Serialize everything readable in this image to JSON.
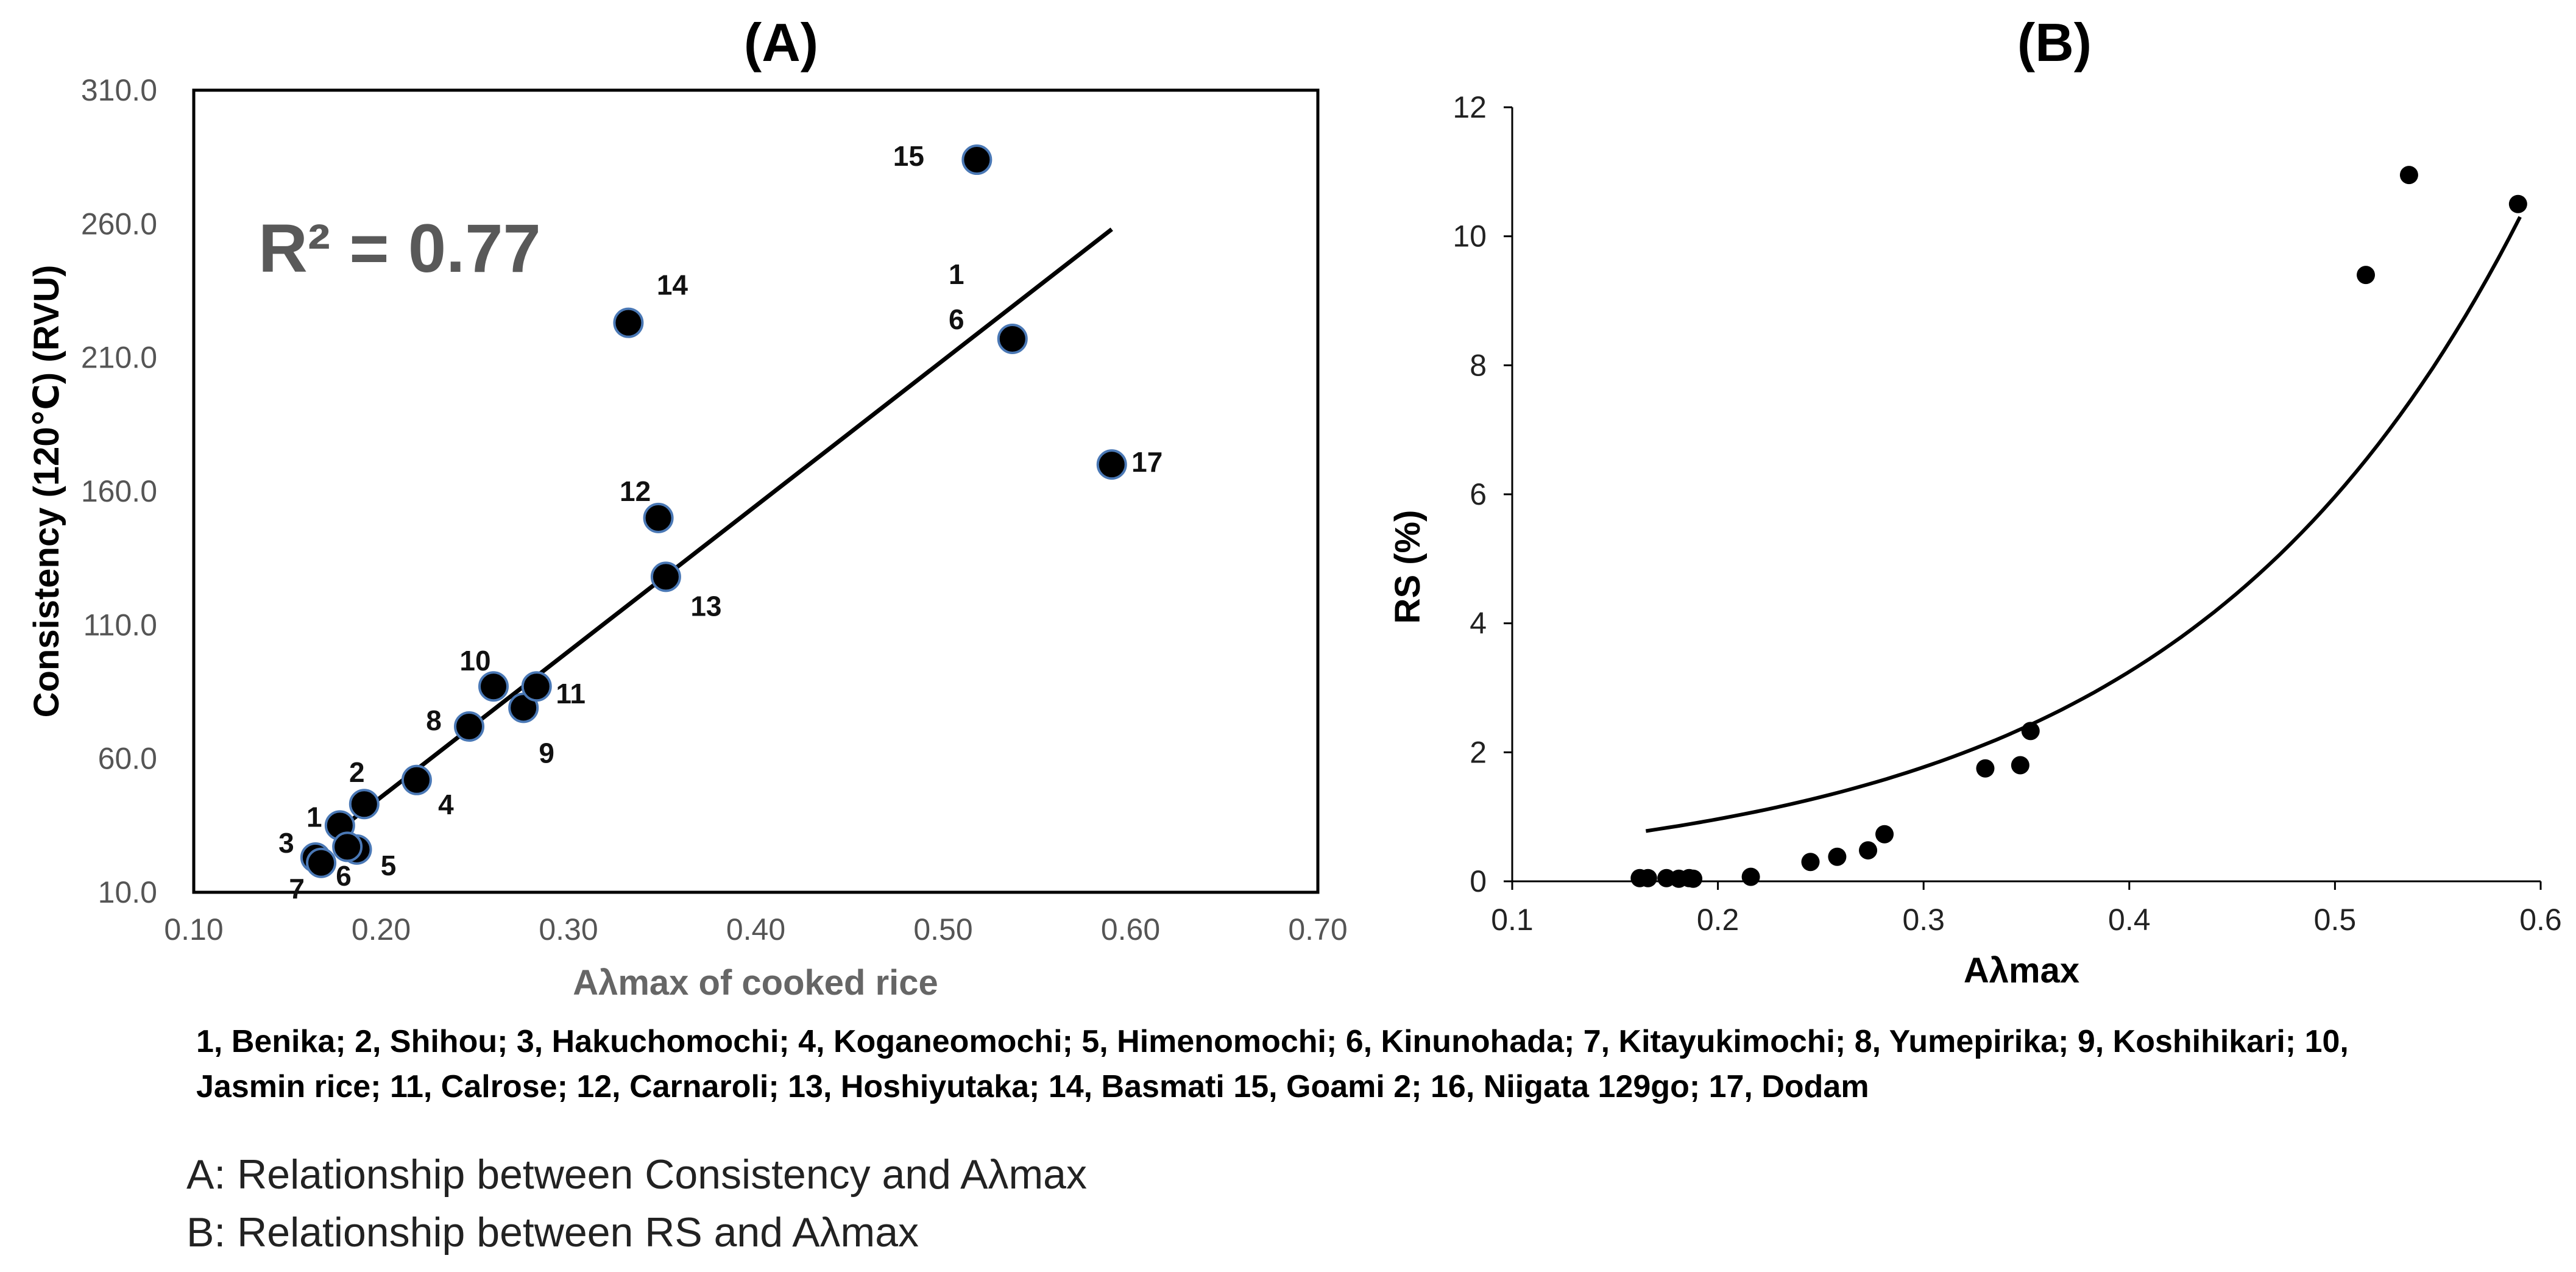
{
  "panel_a_title": "(A)",
  "panel_b_title": "(B)",
  "legend_text": "1, Benika; 2, Shihou; 3, Hakuchomochi; 4, Koganeomochi; 5, Himenomochi; 6, Kinunohada; 7, Kitayukimochi; 8, Yumepirika; 9, Koshihikari; 10, Jasmin rice; 11, Calrose; 12, Carnaroli; 13, Hoshiyutaka; 14, Basmati 15, Goami 2; 16, Niigata 129go; 17, Dodam",
  "caption_a": "A: Relationship between Consistency and Aλmax",
  "caption_b": "B: Relationship between RS and Aλmax",
  "colors": {
    "marker": "#000000",
    "marker_edge": "#4a78b5",
    "trend": "#000000",
    "r2_text": "#595959"
  },
  "chart_data": [
    {
      "type": "scatter",
      "title": "(A)",
      "xlabel": "Aλmax of cooked rice",
      "ylabel": "Consistency (120℃) (RVU)",
      "xlim": [
        0.1,
        0.7
      ],
      "ylim": [
        10.0,
        310.0
      ],
      "x_ticks": [
        "0.10",
        "0.20",
        "0.30",
        "0.40",
        "0.50",
        "0.60",
        "0.70"
      ],
      "y_ticks": [
        "10.0",
        "60.0",
        "110.0",
        "160.0",
        "210.0",
        "260.0",
        "310.0"
      ],
      "annotation": "R² = 0.77",
      "trendline": {
        "type": "linear",
        "x": [
          0.175,
          0.59
        ],
        "y": [
          32,
          258
        ]
      },
      "points": [
        {
          "x": 0.178,
          "y": 35,
          "label": "1"
        },
        {
          "x": 0.191,
          "y": 43,
          "label": "2"
        },
        {
          "x": 0.165,
          "y": 23,
          "label": "3"
        },
        {
          "x": 0.219,
          "y": 52,
          "label": "4"
        },
        {
          "x": 0.187,
          "y": 26,
          "label": "5"
        },
        {
          "x": 0.182,
          "y": 27,
          "label": ""
        },
        {
          "x": 0.168,
          "y": 21,
          "label": ""
        },
        {
          "x": 0.247,
          "y": 72,
          "label": "8"
        },
        {
          "x": 0.276,
          "y": 79,
          "label": "9"
        },
        {
          "x": 0.26,
          "y": 87,
          "label": "10"
        },
        {
          "x": 0.283,
          "y": 87,
          "label": "11"
        },
        {
          "x": 0.348,
          "y": 150,
          "label": "12"
        },
        {
          "x": 0.352,
          "y": 128,
          "label": "13"
        },
        {
          "x": 0.332,
          "y": 223,
          "label": "14"
        },
        {
          "x": 0.518,
          "y": 284,
          "label": "15"
        },
        {
          "x": 0.537,
          "y": 217,
          "label": "1\n6"
        },
        {
          "x": 0.59,
          "y": 170,
          "label": "17"
        }
      ],
      "extra_labels": [
        "7",
        "6"
      ]
    },
    {
      "type": "scatter",
      "title": "(B)",
      "xlabel": "Aλmax",
      "ylabel": "RS (%)",
      "xlim": [
        0.1,
        0.6
      ],
      "ylim": [
        0,
        12
      ],
      "x_ticks": [
        "0.1",
        "0.2",
        "0.3",
        "0.4",
        "0.5",
        "0.6"
      ],
      "y_ticks": [
        "0",
        "2",
        "4",
        "6",
        "8",
        "10",
        "12"
      ],
      "trendline": {
        "type": "exponential",
        "x0": 0.165,
        "y0": 0.78,
        "x1": 0.59,
        "y1": 10.3
      },
      "points": [
        {
          "x": 0.162,
          "y": 0.05
        },
        {
          "x": 0.166,
          "y": 0.05
        },
        {
          "x": 0.175,
          "y": 0.05
        },
        {
          "x": 0.181,
          "y": 0.04
        },
        {
          "x": 0.186,
          "y": 0.05
        },
        {
          "x": 0.188,
          "y": 0.04
        },
        {
          "x": 0.216,
          "y": 0.07
        },
        {
          "x": 0.245,
          "y": 0.3
        },
        {
          "x": 0.258,
          "y": 0.38
        },
        {
          "x": 0.273,
          "y": 0.48
        },
        {
          "x": 0.281,
          "y": 0.73
        },
        {
          "x": 0.33,
          "y": 1.75
        },
        {
          "x": 0.347,
          "y": 1.8
        },
        {
          "x": 0.352,
          "y": 2.33
        },
        {
          "x": 0.515,
          "y": 9.4
        },
        {
          "x": 0.536,
          "y": 10.95
        },
        {
          "x": 0.589,
          "y": 10.5
        }
      ]
    }
  ]
}
